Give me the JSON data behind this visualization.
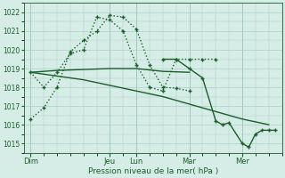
{
  "background_color": "#d5ede6",
  "grid_color": "#aacfc7",
  "line_color": "#1a5e28",
  "text_color": "#1a5e28",
  "xlabel": "Pression niveau de la mer( hPa )",
  "ylim": [
    1014.5,
    1022.5
  ],
  "yticks": [
    1015,
    1016,
    1017,
    1018,
    1019,
    1020,
    1021,
    1022
  ],
  "day_labels": [
    "Dim",
    "Jeu",
    "Lun",
    "Mar",
    "Mer"
  ],
  "day_positions": [
    0,
    12,
    16,
    24,
    32
  ],
  "xlim": [
    -1,
    38
  ],
  "series": [
    {
      "x": [
        0,
        2,
        4,
        6,
        8,
        10,
        12,
        14,
        16,
        18,
        20,
        22,
        24
      ],
      "y": [
        1016.3,
        1016.9,
        1018.0,
        1019.9,
        1020.5,
        1021.0,
        1021.85,
        1021.75,
        1021.1,
        1019.2,
        1018.0,
        1017.95,
        1017.8
      ],
      "linestyle": "dotted",
      "marker": true,
      "lw": 1.0
    },
    {
      "x": [
        0,
        2,
        4,
        6,
        8,
        10,
        12,
        14,
        16,
        18,
        20,
        22,
        24,
        26,
        28
      ],
      "y": [
        1018.8,
        1018.0,
        1018.8,
        1019.8,
        1020.0,
        1021.75,
        1021.6,
        1021.0,
        1019.2,
        1018.0,
        1017.8,
        1019.5,
        1019.5,
        1019.5,
        1019.5
      ],
      "linestyle": "dotted",
      "marker": true,
      "lw": 1.0
    },
    {
      "x": [
        0,
        4,
        8,
        12,
        16,
        20,
        24
      ],
      "y": [
        1018.8,
        1018.9,
        1018.95,
        1019.0,
        1019.0,
        1018.85,
        1018.8
      ],
      "linestyle": "solid",
      "marker": false,
      "lw": 1.0
    },
    {
      "x": [
        0,
        4,
        8,
        12,
        16,
        20,
        24,
        28,
        32,
        36
      ],
      "y": [
        1018.8,
        1018.6,
        1018.4,
        1018.1,
        1017.8,
        1017.5,
        1017.1,
        1016.7,
        1016.3,
        1016.0
      ],
      "linestyle": "solid",
      "marker": false,
      "lw": 1.0
    },
    {
      "x": [
        20,
        22,
        24,
        26,
        28,
        29,
        30,
        32,
        33,
        34,
        35,
        36,
        37
      ],
      "y": [
        1019.5,
        1019.5,
        1019.0,
        1018.5,
        1016.2,
        1016.0,
        1016.1,
        1015.0,
        1014.8,
        1015.5,
        1015.7,
        1015.7,
        1015.7
      ],
      "linestyle": "solid",
      "marker": true,
      "lw": 1.0
    }
  ]
}
